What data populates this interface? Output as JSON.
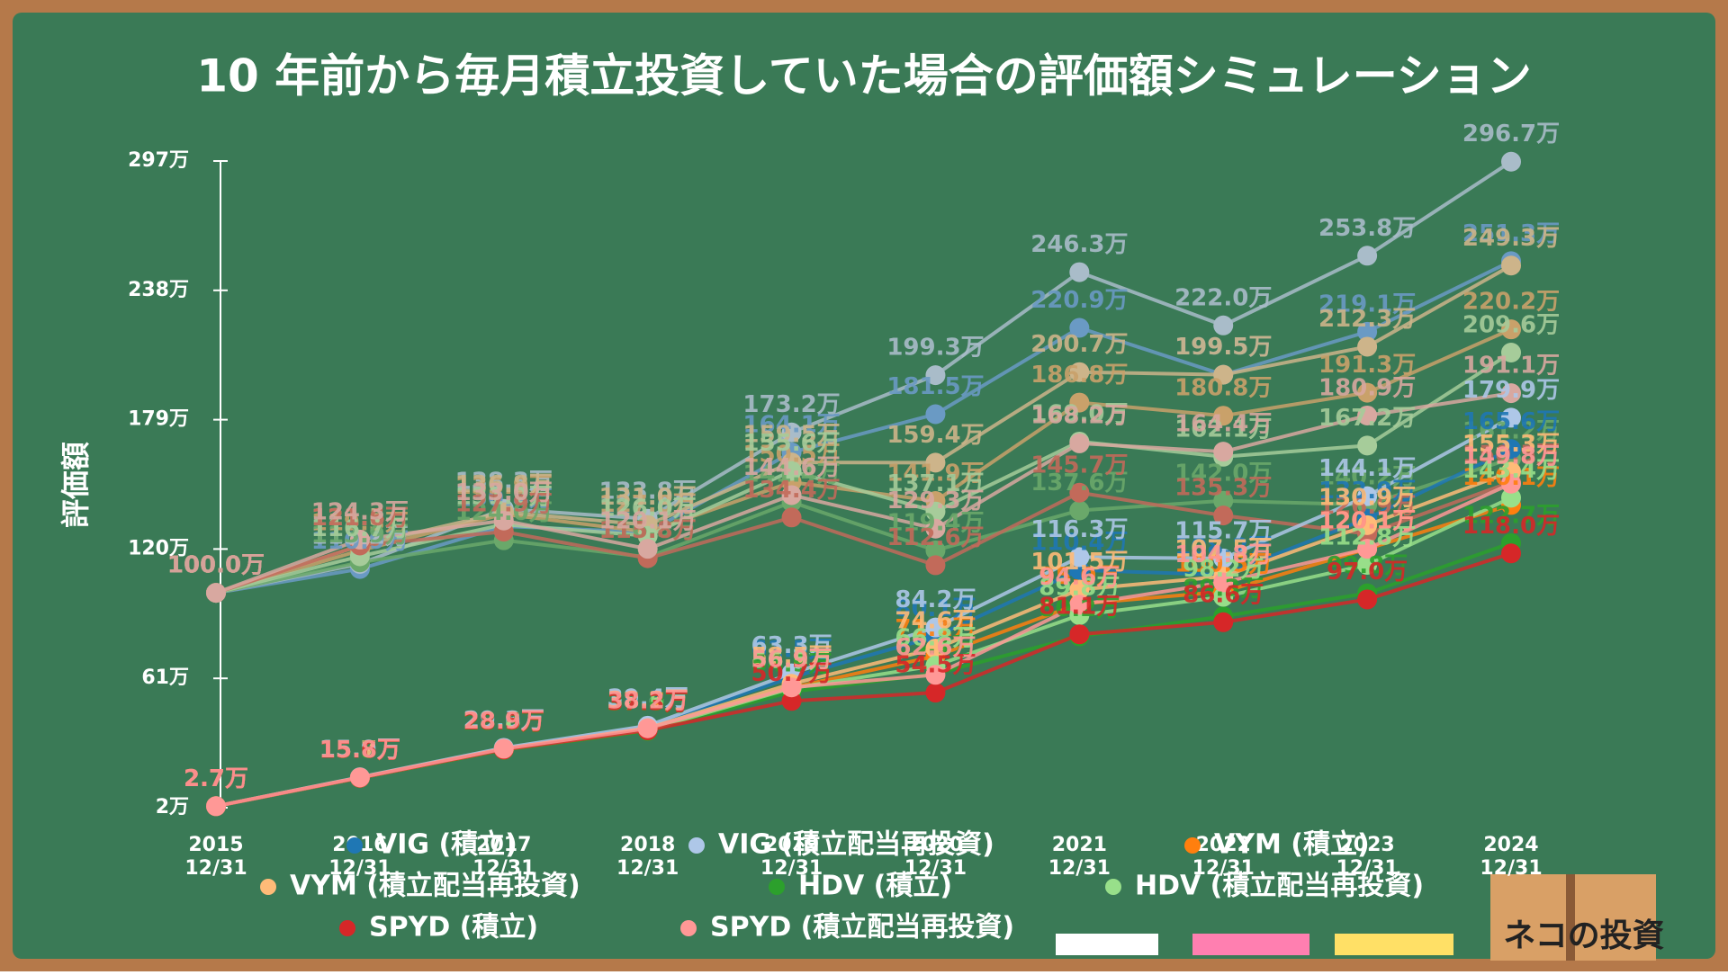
{
  "chart_data": {
    "type": "line",
    "title": "10 年前から毎月積立投資していた場合の評価額シミュレーション",
    "y_label": "評価額",
    "categories": [
      "2015\n12/31",
      "2016\n12/31",
      "2017\n12/31",
      "2018\n12/31",
      "2019\n12/31",
      "2020\n12/31",
      "2021\n12/31",
      "2022\n12/31",
      "2023\n12/31",
      "2024\n12/31"
    ],
    "ylim": [
      2,
      297
    ],
    "yticks": [
      {
        "value": 2,
        "label": "2万"
      },
      {
        "value": 61,
        "label": "61万"
      },
      {
        "value": 120,
        "label": "120万"
      },
      {
        "value": 179,
        "label": "179万"
      },
      {
        "value": 238,
        "label": "238万"
      },
      {
        "value": 297,
        "label": "297万"
      }
    ],
    "series": [
      {
        "name": "VIG (積立)",
        "color": "#1f77b4",
        "values": [
          2.7,
          15.7,
          29.0,
          38.8,
          61.5,
          80.1,
          110.4,
          108.2,
          133.9,
          165.6
        ],
        "value_labels": [
          "2.7万",
          "15.7万",
          "29.0万",
          "38.8万",
          "61.5万",
          "80.1万",
          "110.4万",
          "108.2万",
          "133.9万",
          "165.6万"
        ]
      },
      {
        "name": "VIG (積立配当再投資)",
        "color": "#aec7e8",
        "values": [
          2.7,
          15.9,
          29.3,
          39.4,
          63.3,
          84.2,
          116.3,
          115.7,
          144.1,
          179.9
        ],
        "value_labels": [
          "2.7万",
          "15.9万",
          "29.3万",
          "39.4万",
          "63.3万",
          "84.2万",
          "116.3万",
          "115.7万",
          "144.1万",
          "179.9万"
        ]
      },
      {
        "name": "VYM (積立)",
        "color": "#ff7f0e",
        "values": [
          2.7,
          15.6,
          28.5,
          37.7,
          56.8,
          71.1,
          95.0,
          100.5,
          120.1,
          140.1
        ],
        "value_labels": [
          "2.7万",
          "15.6万",
          "28.5万",
          "37.7万",
          "56.8万",
          "71.1万",
          "95.0万",
          "100.5万",
          "120.1万",
          "140.1万"
        ]
      },
      {
        "name": "VYM (積立配当再投資)",
        "color": "#ffbb78",
        "values": [
          2.7,
          15.7,
          28.8,
          38.3,
          58.5,
          74.6,
          101.5,
          107.5,
          130.9,
          155.3
        ],
        "value_labels": [
          "2.7万",
          "15.7万",
          "28.8万",
          "38.3万",
          "58.5万",
          "74.6万",
          "101.5万",
          "107.5万",
          "130.9万",
          "155.3万"
        ]
      },
      {
        "name": "HDV (積立)",
        "color": "#2ca02c",
        "values": [
          2.7,
          15.5,
          28.3,
          37.0,
          54.9,
          63.1,
          80.2,
          89.3,
          99.8,
          122.7
        ],
        "value_labels": [
          "2.7万",
          "15.5万",
          "28.3万",
          "37.0万",
          "54.9万",
          "63.1万",
          "80.2万",
          "89.3万",
          "99.8万",
          "122.7万"
        ]
      },
      {
        "name": "HDV (積立配当再投資)",
        "color": "#98df8a",
        "values": [
          2.7,
          15.6,
          28.6,
          37.5,
          56.5,
          66.8,
          89.8,
          98.2,
          112.8,
          143.4
        ],
        "value_labels": [
          "2.7万",
          "15.6万",
          "28.6万",
          "37.5万",
          "56.5万",
          "66.8万",
          "89.8万",
          "98.2万",
          "112.8万",
          "143.4万"
        ]
      },
      {
        "name": "SPYD (積立)",
        "color": "#d62728",
        "values": [
          2.7,
          15.6,
          28.5,
          37.3,
          50.7,
          54.5,
          81.1,
          86.6,
          97.0,
          118.0
        ],
        "value_labels": [
          "2.7万",
          "15.6万",
          "28.5万",
          "37.3万",
          "50.7万",
          "54.5万",
          "81.1万",
          "86.6万",
          "97.0万",
          "118.0万"
        ]
      },
      {
        "name": "SPYD (積立配当再投資)",
        "color": "#ff9896",
        "values": [
          2.7,
          15.8,
          28.9,
          38.2,
          56.9,
          62.6,
          94.6,
          104.8,
          120.1,
          149.8
        ],
        "value_labels": [
          "2.7万",
          "15.8万",
          "28.9万",
          "38.2万",
          "56.9万",
          "62.6万",
          "94.6万",
          "104.8万",
          "120.1万",
          "149.8万"
        ]
      },
      {
        "color": "#6a9ac4",
        "values": [
          100.0,
          110.9,
          130.4,
          127.6,
          164.1,
          181.5,
          220.9,
          199.5,
          219.1,
          251.3
        ],
        "value_labels": [
          "100.0万",
          "110.9万",
          "130.4万",
          "127.6万",
          "164.1万",
          "181.5万",
          "220.9万",
          "199.5万",
          "219.1万",
          "251.3万"
        ]
      },
      {
        "color": "#a9bcc9",
        "values": [
          100.0,
          113.2,
          138.3,
          133.8,
          173.2,
          199.3,
          246.3,
          222.0,
          253.8,
          296.7
        ],
        "value_labels": [
          "100.0万",
          "113.2万",
          "138.3万",
          "133.8万",
          "173.2万",
          "199.3万",
          "246.3万",
          "222.0万",
          "253.8万",
          "296.7万"
        ]
      },
      {
        "color": "#c9a16a",
        "values": [
          100.0,
          119.3,
          135.9,
          127.8,
          150.5,
          141.9,
          186.8,
          180.8,
          191.3,
          220.2
        ],
        "value_labels": [
          "100.0万",
          "119.3万",
          "135.9万",
          "127.8万",
          "150.5万",
          "141.9万",
          "186.8万",
          "180.8万",
          "191.3万",
          "220.2万"
        ]
      },
      {
        "color": "#cdb48a",
        "values": [
          100.0,
          121.5,
          136.8,
          131.0,
          159.5,
          159.4,
          200.7,
          199.5,
          212.3,
          249.3
        ],
        "value_labels": [
          "100.0万",
          "121.5万",
          "136.8万",
          "131.0万",
          "159.5万",
          "159.4万",
          "200.7万",
          "199.5万",
          "212.3万",
          "249.3万"
        ]
      },
      {
        "color": "#6aa86a",
        "values": [
          100.0,
          113.9,
          124.0,
          116.3,
          141.4,
          119.4,
          137.6,
          142.0,
          140.2,
          161.2
        ],
        "value_labels": [
          "100.0万",
          "113.9万",
          "124.0万",
          "116.3万",
          "141.4万",
          "119.4万",
          "137.6万",
          "142.0万",
          "140.2万",
          "161.2万"
        ]
      },
      {
        "color": "#a6cc9a",
        "values": [
          100.0,
          116.7,
          131.2,
          126.0,
          155.6,
          137.1,
          169.0,
          162.1,
          167.2,
          209.6
        ],
        "value_labels": [
          "100.0万",
          "116.7万",
          "131.2万",
          "126.0万",
          "155.6万",
          "137.1万",
          "169.0万",
          "162.1万",
          "167.2万",
          "209.6万"
        ]
      },
      {
        "color": "#c26a5a",
        "values": [
          100.0,
          121.6,
          127.9,
          115.8,
          134.4,
          112.6,
          145.7,
          135.3,
          126.9,
          150.5
        ],
        "value_labels": [
          "100.0万",
          "121.6万",
          "127.9万",
          "115.8万",
          "134.4万",
          "112.6万",
          "145.7万",
          "135.3万",
          "126.9万",
          "150.5万"
        ]
      },
      {
        "color": "#d8a8a0",
        "values": [
          100.0,
          124.3,
          133.0,
          120.1,
          144.6,
          129.3,
          168.2,
          164.4,
          180.9,
          191.1
        ],
        "value_labels": [
          "100.0万",
          "124.3万",
          "133.0万",
          "120.1万",
          "144.6万",
          "129.3万",
          "168.2万",
          "164.4万",
          "180.9万",
          "191.1万"
        ]
      }
    ]
  },
  "logo": "ネコの投資"
}
